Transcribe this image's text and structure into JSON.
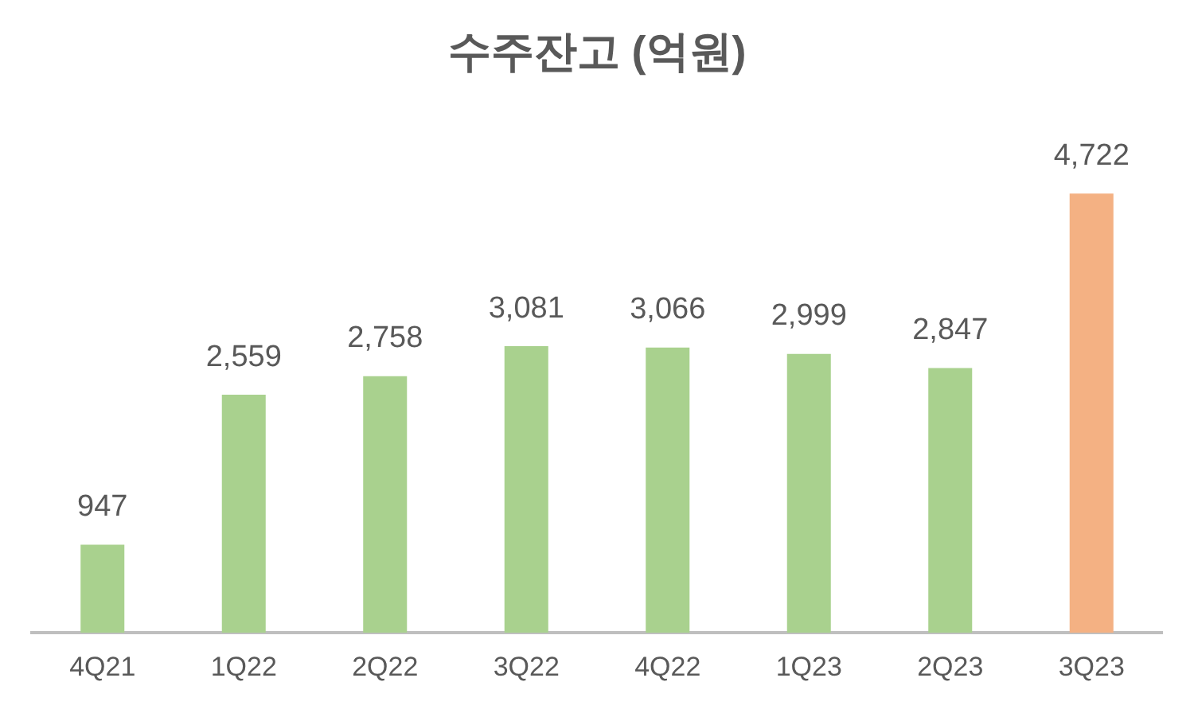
{
  "chart_data": {
    "type": "bar",
    "title": "수주잔고 (억원)",
    "categories": [
      "4Q21",
      "1Q22",
      "2Q22",
      "3Q22",
      "4Q22",
      "1Q23",
      "2Q23",
      "3Q23"
    ],
    "values": [
      947,
      2559,
      2758,
      3081,
      3066,
      2999,
      2847,
      4722
    ],
    "colors": [
      "#a9d18e",
      "#a9d18e",
      "#a9d18e",
      "#a9d18e",
      "#a9d18e",
      "#a9d18e",
      "#a9d18e",
      "#f4b183"
    ],
    "value_labels": [
      "947",
      "2,559",
      "2,758",
      "3,081",
      "3,066",
      "2,999",
      "2,847",
      "4,722"
    ],
    "grid": false,
    "legend": false,
    "tick_labels": "x"
  }
}
